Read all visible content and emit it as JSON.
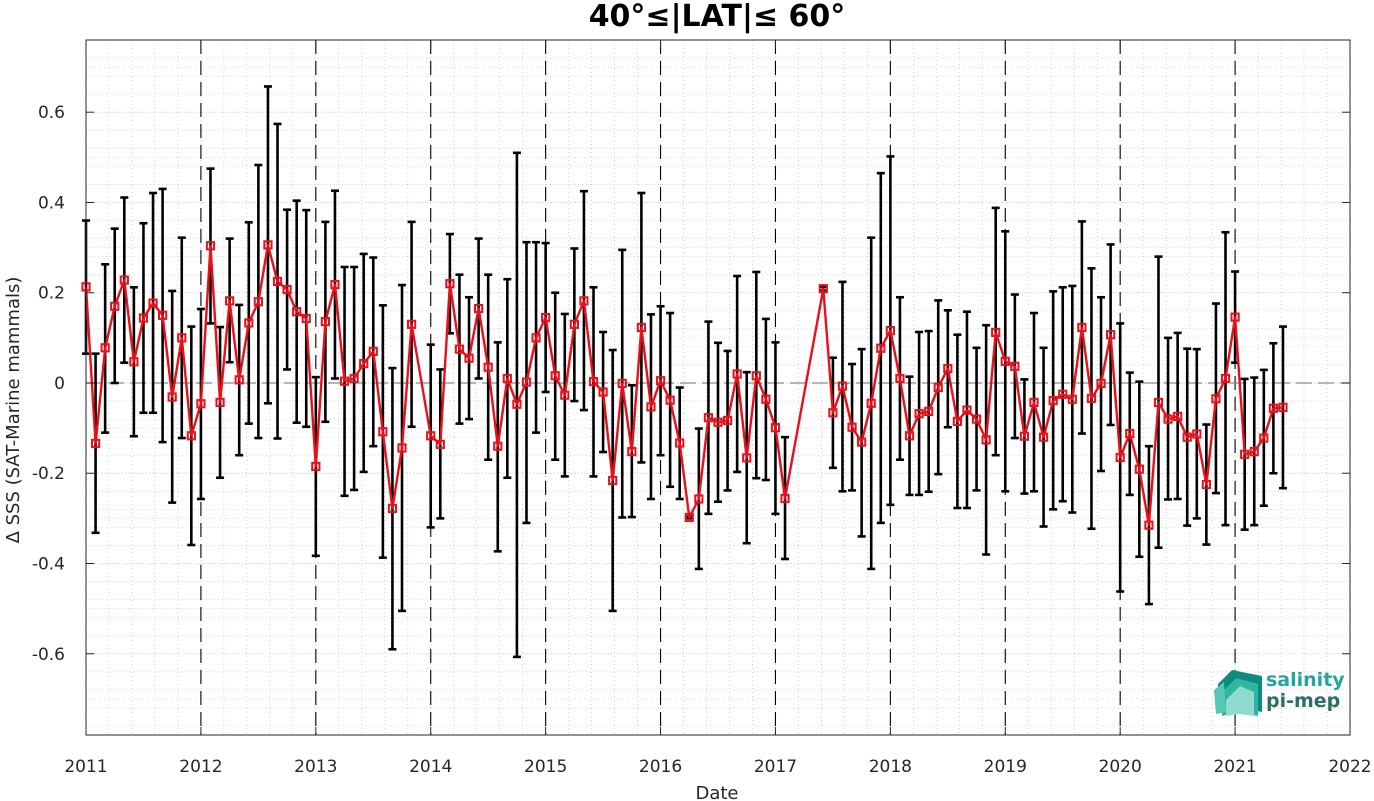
{
  "chart_data": {
    "type": "line",
    "title": "40°≤|LAT|≤ 60°",
    "xlabel": "Date",
    "ylabel": "Δ SSS (SAT-Marine mammals)",
    "xlim": [
      2011,
      2022
    ],
    "ylim": [
      -0.78,
      0.76
    ],
    "x_tick_labels": [
      "2011",
      "2012",
      "2013",
      "2014",
      "2015",
      "2016",
      "2017",
      "2018",
      "2019",
      "2020",
      "2021",
      "2022"
    ],
    "y_tick_labels": [
      "0.6",
      "0.4",
      "0.2",
      "0",
      "-0.2",
      "-0.4",
      "-0.6"
    ],
    "y_tick_values": [
      0.6,
      0.4,
      0.2,
      0,
      -0.2,
      -0.4,
      -0.6
    ],
    "grid": "minor dotted grid; dashed vertical line at each year start; dashed horizontal line at zero",
    "series": [
      {
        "color": "#e8101a",
        "marker": "square",
        "errorbar_color": "#000000",
        "points": [
          {
            "x": "2011-01",
            "y": 0.213,
            "lo": 0.065,
            "hi": 0.36
          },
          {
            "x": "2011-02",
            "y": -0.134,
            "lo": -0.332,
            "hi": 0.065
          },
          {
            "x": "2011-03",
            "y": 0.078,
            "lo": -0.11,
            "hi": 0.263
          },
          {
            "x": "2011-04",
            "y": 0.17,
            "lo": 0.0,
            "hi": 0.342
          },
          {
            "x": "2011-05",
            "y": 0.228,
            "lo": 0.045,
            "hi": 0.411
          },
          {
            "x": "2011-06",
            "y": 0.047,
            "lo": -0.118,
            "hi": 0.212
          },
          {
            "x": "2011-07",
            "y": 0.144,
            "lo": -0.066,
            "hi": 0.354
          },
          {
            "x": "2011-08",
            "y": 0.177,
            "lo": -0.066,
            "hi": 0.421
          },
          {
            "x": "2011-09",
            "y": 0.15,
            "lo": -0.131,
            "hi": 0.43
          },
          {
            "x": "2011-10",
            "y": -0.031,
            "lo": -0.265,
            "hi": 0.204
          },
          {
            "x": "2011-11",
            "y": 0.1,
            "lo": -0.122,
            "hi": 0.322
          },
          {
            "x": "2011-12",
            "y": -0.117,
            "lo": -0.359,
            "hi": 0.125
          },
          {
            "x": "2012-01",
            "y": -0.046,
            "lo": -0.257,
            "hi": 0.164
          },
          {
            "x": "2012-02",
            "y": 0.304,
            "lo": 0.132,
            "hi": 0.475
          },
          {
            "x": "2012-03",
            "y": -0.043,
            "lo": -0.21,
            "hi": 0.124
          },
          {
            "x": "2012-04",
            "y": 0.182,
            "lo": 0.046,
            "hi": 0.32
          },
          {
            "x": "2012-05",
            "y": 0.007,
            "lo": -0.16,
            "hi": 0.173
          },
          {
            "x": "2012-06",
            "y": 0.133,
            "lo": -0.09,
            "hi": 0.356
          },
          {
            "x": "2012-07",
            "y": 0.18,
            "lo": -0.122,
            "hi": 0.483
          },
          {
            "x": "2012-08",
            "y": 0.306,
            "lo": -0.045,
            "hi": 0.657
          },
          {
            "x": "2012-09",
            "y": 0.225,
            "lo": -0.123,
            "hi": 0.574
          },
          {
            "x": "2012-10",
            "y": 0.207,
            "lo": 0.03,
            "hi": 0.384
          },
          {
            "x": "2012-11",
            "y": 0.158,
            "lo": -0.088,
            "hi": 0.404
          },
          {
            "x": "2012-12",
            "y": 0.143,
            "lo": -0.097,
            "hi": 0.383
          },
          {
            "x": "2013-01",
            "y": -0.185,
            "lo": -0.383,
            "hi": 0.013
          },
          {
            "x": "2013-02",
            "y": 0.136,
            "lo": -0.086,
            "hi": 0.357
          },
          {
            "x": "2013-03",
            "y": 0.218,
            "lo": 0.01,
            "hi": 0.426
          },
          {
            "x": "2013-04",
            "y": 0.004,
            "lo": -0.25,
            "hi": 0.257
          },
          {
            "x": "2013-05",
            "y": 0.01,
            "lo": -0.237,
            "hi": 0.257
          },
          {
            "x": "2013-06",
            "y": 0.043,
            "lo": -0.197,
            "hi": 0.286
          },
          {
            "x": "2013-07",
            "y": 0.07,
            "lo": -0.14,
            "hi": 0.278
          },
          {
            "x": "2013-08",
            "y": -0.108,
            "lo": -0.387,
            "hi": 0.172
          },
          {
            "x": "2013-09",
            "y": -0.278,
            "lo": -0.59,
            "hi": 0.033
          },
          {
            "x": "2013-10",
            "y": -0.144,
            "lo": -0.505,
            "hi": 0.217
          },
          {
            "x": "2013-11",
            "y": 0.13,
            "lo": -0.097,
            "hi": 0.357
          },
          {
            "x": "2014-01",
            "y": -0.117,
            "lo": -0.32,
            "hi": 0.085
          },
          {
            "x": "2014-02",
            "y": -0.136,
            "lo": -0.3,
            "hi": 0.03
          },
          {
            "x": "2014-03",
            "y": 0.22,
            "lo": 0.11,
            "hi": 0.33
          },
          {
            "x": "2014-04",
            "y": 0.075,
            "lo": -0.09,
            "hi": 0.24
          },
          {
            "x": "2014-05",
            "y": 0.055,
            "lo": -0.08,
            "hi": 0.19
          },
          {
            "x": "2014-06",
            "y": 0.165,
            "lo": 0.01,
            "hi": 0.32
          },
          {
            "x": "2014-07",
            "y": 0.035,
            "lo": -0.17,
            "hi": 0.24
          },
          {
            "x": "2014-08",
            "y": -0.14,
            "lo": -0.373,
            "hi": 0.09
          },
          {
            "x": "2014-09",
            "y": 0.01,
            "lo": -0.21,
            "hi": 0.23
          },
          {
            "x": "2014-10",
            "y": -0.047,
            "lo": -0.607,
            "hi": 0.51
          },
          {
            "x": "2014-11",
            "y": 0.002,
            "lo": -0.31,
            "hi": 0.312
          },
          {
            "x": "2014-12",
            "y": 0.1,
            "lo": -0.11,
            "hi": 0.312
          },
          {
            "x": "2015-01",
            "y": 0.145,
            "lo": -0.02,
            "hi": 0.31
          },
          {
            "x": "2015-02",
            "y": 0.016,
            "lo": -0.17,
            "hi": 0.2
          },
          {
            "x": "2015-03",
            "y": -0.027,
            "lo": -0.207,
            "hi": 0.153
          },
          {
            "x": "2015-04",
            "y": 0.13,
            "lo": -0.04,
            "hi": 0.298
          },
          {
            "x": "2015-05",
            "y": 0.182,
            "lo": -0.06,
            "hi": 0.425
          },
          {
            "x": "2015-06",
            "y": 0.003,
            "lo": -0.207,
            "hi": 0.212
          },
          {
            "x": "2015-07",
            "y": -0.02,
            "lo": -0.153,
            "hi": 0.113
          },
          {
            "x": "2015-08",
            "y": -0.216,
            "lo": -0.505,
            "hi": 0.073
          },
          {
            "x": "2015-09",
            "y": -0.001,
            "lo": -0.298,
            "hi": 0.295
          },
          {
            "x": "2015-10",
            "y": -0.152,
            "lo": -0.297,
            "hi": -0.005
          },
          {
            "x": "2015-11",
            "y": 0.123,
            "lo": -0.176,
            "hi": 0.421
          },
          {
            "x": "2015-12",
            "y": -0.053,
            "lo": -0.257,
            "hi": 0.152
          },
          {
            "x": "2016-01",
            "y": 0.005,
            "lo": -0.16,
            "hi": 0.17
          },
          {
            "x": "2016-02",
            "y": -0.038,
            "lo": -0.23,
            "hi": 0.155
          },
          {
            "x": "2016-03",
            "y": -0.133,
            "lo": -0.257,
            "hi": -0.01
          },
          {
            "x": "2016-04",
            "y": -0.298,
            "lo": -0.3,
            "hi": -0.296
          },
          {
            "x": "2016-05",
            "y": -0.257,
            "lo": -0.412,
            "hi": -0.101
          },
          {
            "x": "2016-06",
            "y": -0.077,
            "lo": -0.29,
            "hi": 0.136
          },
          {
            "x": "2016-07",
            "y": -0.087,
            "lo": -0.263,
            "hi": 0.089
          },
          {
            "x": "2016-08",
            "y": -0.083,
            "lo": -0.238,
            "hi": 0.071
          },
          {
            "x": "2016-09",
            "y": 0.02,
            "lo": -0.197,
            "hi": 0.237
          },
          {
            "x": "2016-10",
            "y": -0.166,
            "lo": -0.355,
            "hi": 0.024
          },
          {
            "x": "2016-11",
            "y": 0.016,
            "lo": -0.211,
            "hi": 0.246
          },
          {
            "x": "2016-12",
            "y": -0.036,
            "lo": -0.215,
            "hi": 0.142
          },
          {
            "x": "2017-01",
            "y": -0.099,
            "lo": -0.29,
            "hi": 0.09
          },
          {
            "x": "2017-02",
            "y": -0.256,
            "lo": -0.39,
            "hi": -0.12
          },
          {
            "x": "2017-06",
            "y": 0.209,
            "lo": 0.205,
            "hi": 0.213
          },
          {
            "x": "2017-07",
            "y": -0.066,
            "lo": -0.188,
            "hi": 0.056
          },
          {
            "x": "2017-08",
            "y": -0.007,
            "lo": -0.24,
            "hi": 0.224
          },
          {
            "x": "2017-09",
            "y": -0.098,
            "lo": -0.238,
            "hi": 0.042
          },
          {
            "x": "2017-10",
            "y": -0.131,
            "lo": -0.34,
            "hi": 0.075
          },
          {
            "x": "2017-11",
            "y": -0.045,
            "lo": -0.412,
            "hi": 0.322
          },
          {
            "x": "2017-12",
            "y": 0.077,
            "lo": -0.31,
            "hi": 0.465
          },
          {
            "x": "2018-01",
            "y": 0.116,
            "lo": -0.27,
            "hi": 0.502
          },
          {
            "x": "2018-02",
            "y": 0.01,
            "lo": -0.17,
            "hi": 0.19
          },
          {
            "x": "2018-03",
            "y": -0.117,
            "lo": -0.248,
            "hi": 0.014
          },
          {
            "x": "2018-04",
            "y": -0.068,
            "lo": -0.248,
            "hi": 0.113
          },
          {
            "x": "2018-05",
            "y": -0.063,
            "lo": -0.241,
            "hi": 0.115
          },
          {
            "x": "2018-06",
            "y": -0.01,
            "lo": -0.202,
            "hi": 0.183
          },
          {
            "x": "2018-07",
            "y": 0.032,
            "lo": -0.098,
            "hi": 0.161
          },
          {
            "x": "2018-08",
            "y": -0.085,
            "lo": -0.277,
            "hi": 0.107
          },
          {
            "x": "2018-09",
            "y": -0.06,
            "lo": -0.277,
            "hi": 0.158
          },
          {
            "x": "2018-10",
            "y": -0.08,
            "lo": -0.238,
            "hi": 0.078
          },
          {
            "x": "2018-11",
            "y": -0.126,
            "lo": -0.38,
            "hi": 0.128
          },
          {
            "x": "2018-12",
            "y": 0.112,
            "lo": -0.16,
            "hi": 0.388
          },
          {
            "x": "2019-01",
            "y": 0.048,
            "lo": -0.24,
            "hi": 0.336
          },
          {
            "x": "2019-02",
            "y": 0.037,
            "lo": -0.122,
            "hi": 0.196
          },
          {
            "x": "2019-03",
            "y": -0.118,
            "lo": -0.245,
            "hi": 0.008
          },
          {
            "x": "2019-04",
            "y": -0.043,
            "lo": -0.24,
            "hi": 0.155
          },
          {
            "x": "2019-05",
            "y": -0.12,
            "lo": -0.318,
            "hi": 0.078
          },
          {
            "x": "2019-06",
            "y": -0.039,
            "lo": -0.28,
            "hi": 0.203
          },
          {
            "x": "2019-07",
            "y": -0.025,
            "lo": -0.262,
            "hi": 0.212
          },
          {
            "x": "2019-08",
            "y": -0.036,
            "lo": -0.287,
            "hi": 0.215
          },
          {
            "x": "2019-09",
            "y": 0.123,
            "lo": -0.112,
            "hi": 0.358
          },
          {
            "x": "2019-10",
            "y": -0.034,
            "lo": -0.323,
            "hi": 0.254
          },
          {
            "x": "2019-11",
            "y": -0.001,
            "lo": -0.195,
            "hi": 0.19
          },
          {
            "x": "2019-12",
            "y": 0.107,
            "lo": -0.093,
            "hi": 0.307
          },
          {
            "x": "2020-01",
            "y": -0.165,
            "lo": -0.462,
            "hi": 0.132
          },
          {
            "x": "2020-02",
            "y": -0.112,
            "lo": -0.248,
            "hi": 0.023
          },
          {
            "x": "2020-03",
            "y": -0.191,
            "lo": -0.385,
            "hi": 0.003
          },
          {
            "x": "2020-04",
            "y": -0.315,
            "lo": -0.49,
            "hi": -0.14
          },
          {
            "x": "2020-05",
            "y": -0.043,
            "lo": -0.365,
            "hi": 0.28
          },
          {
            "x": "2020-06",
            "y": -0.08,
            "lo": -0.258,
            "hi": 0.1
          },
          {
            "x": "2020-07",
            "y": -0.074,
            "lo": -0.257,
            "hi": 0.111
          },
          {
            "x": "2020-08",
            "y": -0.12,
            "lo": -0.316,
            "hi": 0.076
          },
          {
            "x": "2020-09",
            "y": -0.113,
            "lo": -0.3,
            "hi": 0.075
          },
          {
            "x": "2020-10",
            "y": -0.225,
            "lo": -0.358,
            "hi": -0.092
          },
          {
            "x": "2020-11",
            "y": -0.035,
            "lo": -0.244,
            "hi": 0.176
          },
          {
            "x": "2020-12",
            "y": 0.01,
            "lo": -0.315,
            "hi": 0.334
          },
          {
            "x": "2021-01",
            "y": 0.146,
            "lo": 0.045,
            "hi": 0.247
          },
          {
            "x": "2021-02",
            "y": -0.158,
            "lo": -0.325,
            "hi": 0.009
          },
          {
            "x": "2021-03",
            "y": -0.152,
            "lo": -0.315,
            "hi": 0.012
          },
          {
            "x": "2021-04",
            "y": -0.122,
            "lo": -0.272,
            "hi": 0.029
          },
          {
            "x": "2021-05",
            "y": -0.056,
            "lo": -0.2,
            "hi": 0.088
          },
          {
            "x": "2021-06",
            "y": -0.054,
            "lo": -0.233,
            "hi": 0.125
          }
        ]
      }
    ]
  },
  "logo": {
    "line1": "salinity",
    "line2": "pi-mep",
    "color_line1": "#20a89a",
    "color_line2": "#2c6e68"
  }
}
